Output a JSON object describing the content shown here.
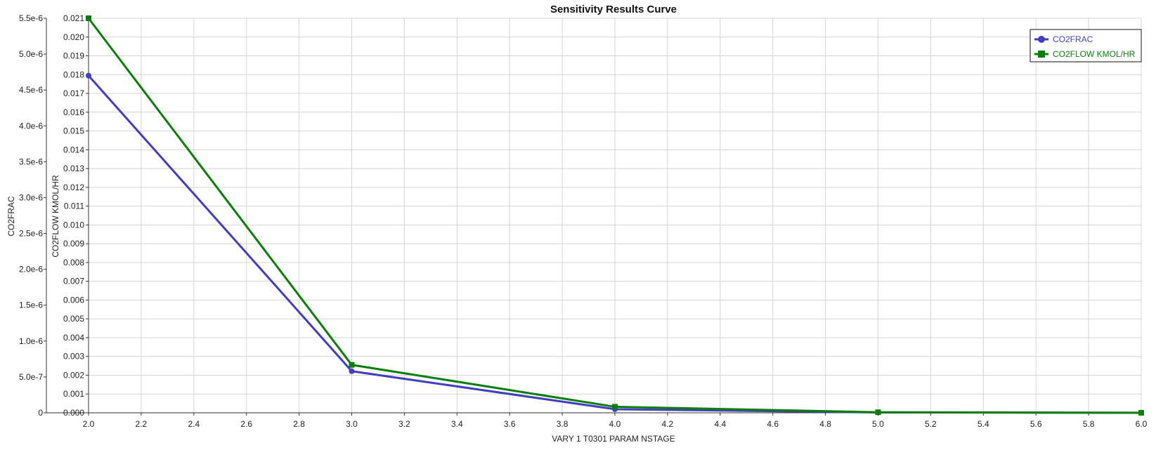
{
  "chart_data": {
    "type": "line",
    "title": "Sensitivity Results Curve",
    "xlabel": "VARY   1 T0301 PARAM NSTAGE",
    "ylabel_left": "CO2FRAC",
    "ylabel_right": "CO2FLOW KMOL/HR",
    "xlim": [
      2.0,
      6.0
    ],
    "ylim_left": [
      0,
      5.5e-06
    ],
    "ylim_right": [
      0,
      0.021
    ],
    "grid": true,
    "legend_position": "top-right",
    "x_ticks": [
      "2.0",
      "2.2",
      "2.4",
      "2.6",
      "2.8",
      "3.0",
      "3.2",
      "3.4",
      "3.6",
      "3.8",
      "4.0",
      "4.2",
      "4.4",
      "4.6",
      "4.8",
      "5.0",
      "5.2",
      "5.4",
      "5.6",
      "5.8",
      "6.0"
    ],
    "y_left_ticks": [
      "0",
      "5.0e-7",
      "1.0e-6",
      "1.5e-6",
      "2.0e-6",
      "2.5e-6",
      "3.0e-6",
      "3.5e-6",
      "4.0e-6",
      "4.5e-6",
      "5.0e-6",
      "5.5e-6"
    ],
    "y_right_ticks": [
      "0.000",
      "0.001",
      "0.002",
      "0.003",
      "0.004",
      "0.005",
      "0.006",
      "0.007",
      "0.008",
      "0.009",
      "0.010",
      "0.011",
      "0.012",
      "0.013",
      "0.014",
      "0.015",
      "0.016",
      "0.017",
      "0.018",
      "0.019",
      "0.020",
      "0.021"
    ],
    "x": [
      2,
      3,
      4,
      5,
      6
    ],
    "series": [
      {
        "name": "CO2FRAC",
        "axis": "left",
        "color": "#3f3fbf",
        "marker": "circle",
        "values": [
          4.7e-06,
          5.8e-07,
          5e-08,
          5e-09,
          5e-10
        ]
      },
      {
        "name": "CO2FLOW KMOL/HR",
        "axis": "right",
        "color": "#0a7d0a",
        "marker": "square",
        "values": [
          0.021,
          0.00255,
          0.00032,
          3e-05,
          3e-06
        ]
      }
    ]
  }
}
